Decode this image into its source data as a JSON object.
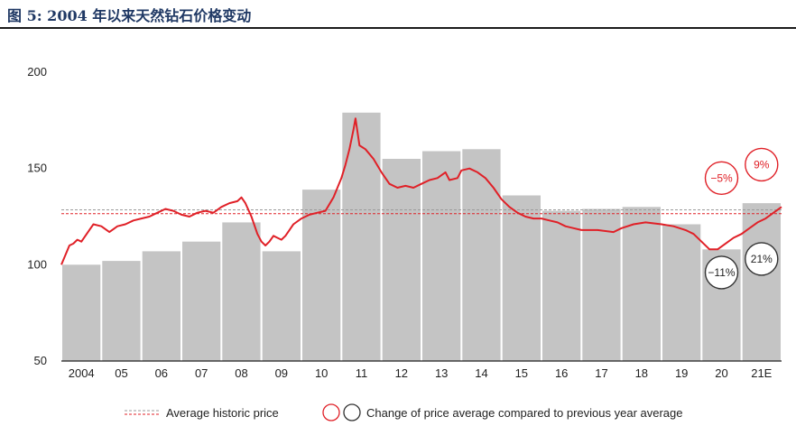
{
  "figure": {
    "title": "图 5:  2004 年以来天然钻石价格变动"
  },
  "chart_data": {
    "type": "bar",
    "categories": [
      "2004",
      "05",
      "06",
      "07",
      "08",
      "09",
      "10",
      "11",
      "12",
      "13",
      "14",
      "15",
      "16",
      "17",
      "18",
      "19",
      "20",
      "21E"
    ],
    "bar_values": [
      100,
      102,
      107,
      112,
      122,
      107,
      139,
      179,
      155,
      159,
      160,
      136,
      128,
      129,
      130,
      121,
      108,
      132
    ],
    "line_series": {
      "name": "",
      "color": "#e02027",
      "points": [
        [
          0.0,
          100
        ],
        [
          0.1,
          105
        ],
        [
          0.2,
          110
        ],
        [
          0.3,
          111
        ],
        [
          0.4,
          113
        ],
        [
          0.5,
          112
        ],
        [
          0.6,
          115
        ],
        [
          0.7,
          118
        ],
        [
          0.8,
          121
        ],
        [
          1.0,
          120
        ],
        [
          1.2,
          117
        ],
        [
          1.4,
          120
        ],
        [
          1.6,
          121
        ],
        [
          1.8,
          123
        ],
        [
          2.0,
          124
        ],
        [
          2.2,
          125
        ],
        [
          2.4,
          127
        ],
        [
          2.6,
          129
        ],
        [
          2.8,
          128
        ],
        [
          3.0,
          126
        ],
        [
          3.2,
          125
        ],
        [
          3.4,
          127
        ],
        [
          3.6,
          128
        ],
        [
          3.8,
          127
        ],
        [
          4.0,
          130
        ],
        [
          4.2,
          132
        ],
        [
          4.4,
          133
        ],
        [
          4.5,
          135
        ],
        [
          4.6,
          132
        ],
        [
          4.75,
          125
        ],
        [
          4.9,
          116
        ],
        [
          5.0,
          112
        ],
        [
          5.1,
          110
        ],
        [
          5.2,
          112
        ],
        [
          5.3,
          115
        ],
        [
          5.4,
          114
        ],
        [
          5.5,
          113
        ],
        [
          5.6,
          115
        ],
        [
          5.7,
          118
        ],
        [
          5.8,
          121
        ],
        [
          6.0,
          124
        ],
        [
          6.2,
          126
        ],
        [
          6.4,
          127
        ],
        [
          6.6,
          128
        ],
        [
          6.8,
          135
        ],
        [
          7.0,
          145
        ],
        [
          7.1,
          152
        ],
        [
          7.2,
          160
        ],
        [
          7.3,
          170
        ],
        [
          7.35,
          176
        ],
        [
          7.45,
          162
        ],
        [
          7.6,
          160
        ],
        [
          7.8,
          155
        ],
        [
          8.0,
          148
        ],
        [
          8.2,
          142
        ],
        [
          8.4,
          140
        ],
        [
          8.6,
          141
        ],
        [
          8.8,
          140
        ],
        [
          9.0,
          142
        ],
        [
          9.2,
          144
        ],
        [
          9.4,
          145
        ],
        [
          9.6,
          148
        ],
        [
          9.7,
          144
        ],
        [
          9.9,
          145
        ],
        [
          10.0,
          149
        ],
        [
          10.2,
          150
        ],
        [
          10.4,
          148
        ],
        [
          10.6,
          145
        ],
        [
          10.8,
          140
        ],
        [
          11.0,
          134
        ],
        [
          11.2,
          130
        ],
        [
          11.4,
          127
        ],
        [
          11.6,
          125
        ],
        [
          11.8,
          124
        ],
        [
          12.0,
          124
        ],
        [
          12.2,
          123
        ],
        [
          12.4,
          122
        ],
        [
          12.6,
          120
        ],
        [
          12.8,
          119
        ],
        [
          13.0,
          118
        ],
        [
          13.4,
          118
        ],
        [
          13.8,
          117
        ],
        [
          14.0,
          119
        ],
        [
          14.3,
          121
        ],
        [
          14.6,
          122
        ],
        [
          15.0,
          121
        ],
        [
          15.3,
          120
        ],
        [
          15.6,
          118
        ],
        [
          15.8,
          116
        ],
        [
          16.0,
          112
        ],
        [
          16.2,
          108
        ],
        [
          16.4,
          108
        ],
        [
          16.6,
          111
        ],
        [
          16.8,
          114
        ],
        [
          17.0,
          116
        ],
        [
          17.2,
          119
        ],
        [
          17.4,
          122
        ],
        [
          17.6,
          124
        ],
        [
          17.8,
          127
        ],
        [
          18.0,
          130
        ]
      ]
    },
    "avg_lines": [
      {
        "value": 128.5,
        "color": "#e02027"
      },
      {
        "value": 126.5,
        "color": "#e02027"
      }
    ],
    "yticks": [
      200,
      150,
      100,
      50
    ],
    "ylim": [
      50,
      200
    ],
    "bar_color": "#c4c4c4",
    "annotations": [
      {
        "label": "−5%",
        "category_index": 16,
        "y": 145,
        "style": "red"
      },
      {
        "label": "9%",
        "category_index": 17,
        "y": 152,
        "style": "red"
      },
      {
        "label": "−11%",
        "category_index": 16,
        "y": 96,
        "style": "black"
      },
      {
        "label": "21%",
        "category_index": 17,
        "y": 103,
        "style": "black"
      }
    ],
    "legend": {
      "avg_label": "Average historic price",
      "change_label": "Change of price average compared to previous year average"
    }
  }
}
